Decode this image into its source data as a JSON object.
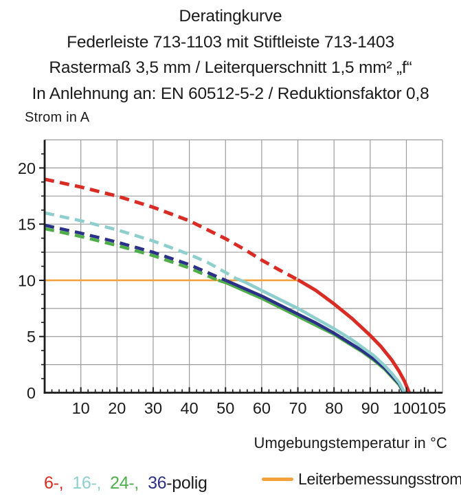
{
  "header": {
    "lines": [
      "Deratingkurve",
      "Federleiste 713-1103 mit Stiftleiste 713-1403",
      "Rastermaß 3,5 mm / Leiterquerschnitt 1,5 mm² „f“",
      "In Anlehnung an: EN 60512-5-2 / Reduktionsfaktor 0,8"
    ]
  },
  "legend": {
    "pole_items": [
      {
        "label": "6-,",
        "color": "#d92c24"
      },
      {
        "label": "16-,",
        "color": "#8ecfcd"
      },
      {
        "label": "24-,",
        "color": "#4fae49"
      },
      {
        "label": "36",
        "color": "#2c3188"
      }
    ],
    "pole_suffix": "-polig",
    "rated_current_label": "Leiterbemessungsstrom",
    "rated_current_color": "#f2a13d"
  },
  "chart_data": {
    "type": "line",
    "title": "Deratingkurve",
    "xlabel": "Umgebungstemperatur in °C",
    "ylabel": "Strom in A",
    "xlim": [
      0,
      110
    ],
    "ylim": [
      0,
      22.5
    ],
    "x_gridline_step": 10,
    "y_gridline_step": 2.5,
    "x_minor_tick_step": 2,
    "y_minor_tick_step": 1.25,
    "x_tick_labels": [
      10,
      20,
      30,
      40,
      50,
      60,
      70,
      80,
      90,
      100,
      105
    ],
    "y_tick_labels": [
      0,
      5,
      10,
      15,
      20
    ],
    "grid_color": "#9c9c9c",
    "axis_color": "#1b1b1b",
    "legend_position": "bottom",
    "series": [
      {
        "name": "Leiterbemessungsstrom",
        "color": "#f2a13d",
        "width": 2.6,
        "solid": [
          [
            0,
            10
          ],
          [
            70,
            10
          ]
        ]
      },
      {
        "name": "24-polig",
        "color": "#4fae49",
        "width": 4.6,
        "dashed": [
          [
            0,
            14.6
          ],
          [
            10,
            13.9
          ],
          [
            20,
            13.1
          ],
          [
            30,
            12.2
          ],
          [
            40,
            11.1
          ],
          [
            45,
            10.4
          ],
          [
            48,
            10.0
          ]
        ],
        "solid": [
          [
            48,
            10.0
          ],
          [
            50,
            9.8
          ],
          [
            55,
            9.1
          ],
          [
            60,
            8.4
          ],
          [
            65,
            7.6
          ],
          [
            70,
            6.8
          ],
          [
            75,
            6.0
          ],
          [
            80,
            5.2
          ],
          [
            85,
            4.2
          ],
          [
            88,
            3.6
          ],
          [
            91,
            2.9
          ],
          [
            94,
            2.1
          ],
          [
            96,
            1.4
          ],
          [
            98,
            0.7
          ],
          [
            99.2,
            0
          ]
        ]
      },
      {
        "name": "36-polig",
        "color": "#2c3188",
        "width": 4.6,
        "dashed": [
          [
            0,
            14.9
          ],
          [
            10,
            14.2
          ],
          [
            20,
            13.4
          ],
          [
            30,
            12.5
          ],
          [
            40,
            11.4
          ],
          [
            45,
            10.7
          ],
          [
            50,
            10.0
          ]
        ],
        "solid": [
          [
            50,
            10.0
          ],
          [
            55,
            9.3
          ],
          [
            60,
            8.6
          ],
          [
            65,
            7.8
          ],
          [
            70,
            7.0
          ],
          [
            75,
            6.2
          ],
          [
            80,
            5.3
          ],
          [
            85,
            4.3
          ],
          [
            88,
            3.7
          ],
          [
            91,
            3.0
          ],
          [
            94,
            2.2
          ],
          [
            96,
            1.5
          ],
          [
            98,
            0.8
          ],
          [
            99.3,
            0
          ]
        ]
      },
      {
        "name": "16-polig",
        "color": "#8ecfcd",
        "width": 4.6,
        "dashed": [
          [
            0,
            16.0
          ],
          [
            10,
            15.3
          ],
          [
            20,
            14.5
          ],
          [
            30,
            13.5
          ],
          [
            40,
            12.3
          ],
          [
            45,
            11.6
          ],
          [
            50,
            10.7
          ],
          [
            53,
            10.15
          ]
        ],
        "solid": [
          [
            53,
            10.15
          ],
          [
            55,
            9.9
          ],
          [
            60,
            9.1
          ],
          [
            65,
            8.3
          ],
          [
            70,
            7.5
          ],
          [
            75,
            6.6
          ],
          [
            80,
            5.7
          ],
          [
            85,
            4.7
          ],
          [
            88,
            4.0
          ],
          [
            91,
            3.3
          ],
          [
            94,
            2.4
          ],
          [
            96,
            1.7
          ],
          [
            98,
            0.9
          ],
          [
            99.5,
            0
          ]
        ]
      },
      {
        "name": "6-polig",
        "color": "#d92c24",
        "width": 5,
        "dashed": [
          [
            0,
            19.0
          ],
          [
            10,
            18.3
          ],
          [
            20,
            17.5
          ],
          [
            30,
            16.5
          ],
          [
            40,
            15.3
          ],
          [
            50,
            13.7
          ],
          [
            55,
            12.8
          ],
          [
            60,
            11.8
          ],
          [
            65,
            10.9
          ],
          [
            70,
            10.05
          ]
        ],
        "solid": [
          [
            70,
            10.05
          ],
          [
            75,
            9.1
          ],
          [
            80,
            7.9
          ],
          [
            85,
            6.6
          ],
          [
            90,
            5.1
          ],
          [
            93,
            4.1
          ],
          [
            96,
            2.9
          ],
          [
            98,
            1.9
          ],
          [
            99.5,
            1.0
          ],
          [
            100.8,
            0
          ]
        ]
      }
    ]
  }
}
